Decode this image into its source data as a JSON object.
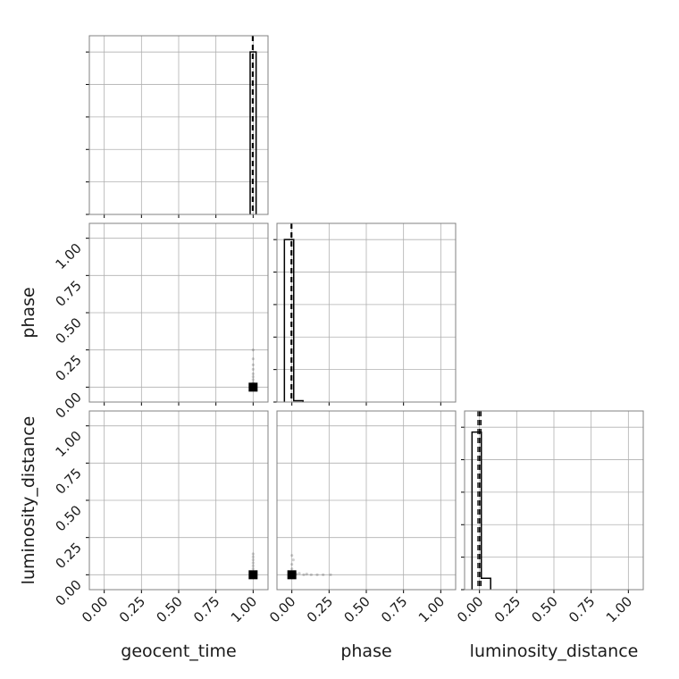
{
  "chart_data": {
    "type": "corner",
    "parameters": [
      "geocent_time",
      "phase",
      "luminosity_distance"
    ],
    "axis_range": [
      -0.1,
      1.1
    ],
    "ticks": [
      0.0,
      0.25,
      0.5,
      0.75,
      1.0
    ],
    "tick_labels": [
      "0.00",
      "0.25",
      "0.50",
      "0.75",
      "1.00"
    ],
    "grid": true,
    "histograms": [
      {
        "parameter": "geocent_time",
        "bin_edges": [
          0.98,
          1.02
        ],
        "counts": [
          1.0
        ],
        "max_density": 1.0,
        "truth_lines": [
          1.0,
          0.995
        ]
      },
      {
        "parameter": "phase",
        "bin_edges": [
          -0.05,
          0.0125,
          0.075
        ],
        "counts": [
          1.0,
          0.008
        ],
        "max_density": 1.0,
        "truth_lines": [
          0.0,
          -0.005
        ]
      },
      {
        "parameter": "luminosity_distance",
        "bin_edges": [
          -0.05,
          0.0125,
          0.075
        ],
        "counts": [
          0.97,
          0.07
        ],
        "max_density": 1.0,
        "truth_lines": [
          0.0,
          -0.01,
          0.01
        ]
      }
    ],
    "scatter": [
      {
        "x": "geocent_time",
        "y": "phase",
        "points": [
          [
            1.0,
            0.0
          ],
          [
            1.0,
            0.01
          ],
          [
            1.0,
            0.03
          ],
          [
            1.0,
            0.05
          ],
          [
            1.0,
            0.07
          ],
          [
            1.0,
            0.09
          ],
          [
            1.0,
            0.12
          ],
          [
            1.0,
            0.15
          ],
          [
            1.0,
            0.19
          ],
          [
            1.0,
            0.25
          ]
        ]
      },
      {
        "x": "geocent_time",
        "y": "luminosity_distance",
        "points": [
          [
            1.0,
            0.0
          ],
          [
            1.0,
            0.01
          ],
          [
            1.0,
            0.02
          ],
          [
            1.0,
            0.04
          ],
          [
            1.0,
            0.06
          ],
          [
            1.0,
            0.08
          ],
          [
            1.0,
            0.1
          ],
          [
            1.0,
            0.12
          ],
          [
            1.0,
            0.14
          ]
        ]
      },
      {
        "x": "phase",
        "y": "luminosity_distance",
        "points": [
          [
            0.0,
            0.0
          ],
          [
            0.01,
            0.01
          ],
          [
            0.02,
            0.02
          ],
          [
            0.0,
            0.04
          ],
          [
            0.0,
            0.07
          ],
          [
            0.01,
            0.1
          ],
          [
            0.0,
            0.13
          ],
          [
            0.03,
            0.005
          ],
          [
            0.05,
            0.01
          ],
          [
            0.08,
            0.0
          ],
          [
            0.1,
            0.005
          ],
          [
            0.13,
            0.0
          ],
          [
            0.17,
            0.0
          ],
          [
            0.21,
            0.0
          ],
          [
            0.26,
            0.0
          ]
        ]
      }
    ]
  }
}
